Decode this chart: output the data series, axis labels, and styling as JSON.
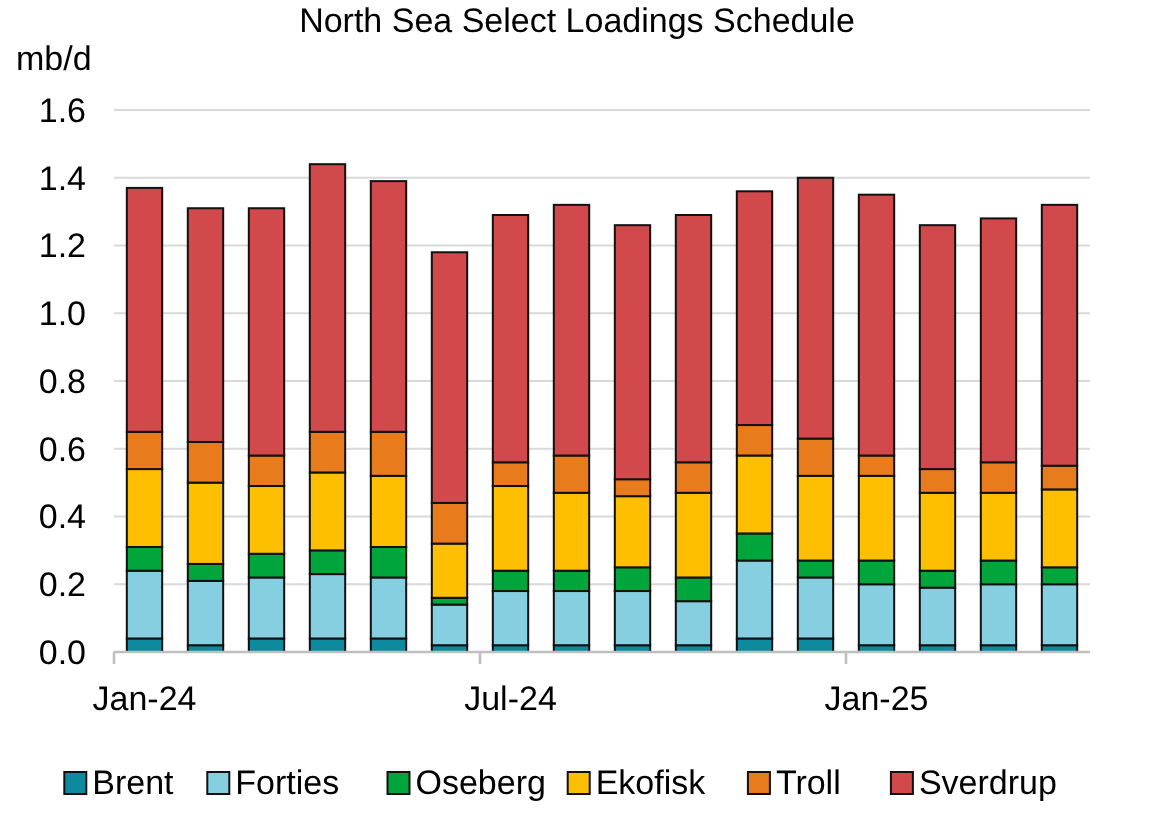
{
  "chart_data": {
    "type": "bar",
    "title": "North Sea Select Loadings Schedule",
    "ylabel": "mb/d",
    "stacked": true,
    "grid": "y",
    "legend": "bottom",
    "categories": [
      "Jan-24",
      null,
      null,
      null,
      null,
      null,
      "Jul-24",
      null,
      null,
      null,
      null,
      null,
      "Jan-25",
      null,
      null,
      null
    ],
    "ylim": [
      0,
      1.6
    ],
    "yticks": [
      {
        "value": 0,
        "label": "0.0"
      },
      {
        "value": 0.2,
        "label": "0.2"
      },
      {
        "value": 0.4,
        "label": "0.4"
      },
      {
        "value": 0.6,
        "label": "0.6"
      },
      {
        "value": 0.8,
        "label": "0.8"
      },
      {
        "value": 1,
        "label": "1.0"
      },
      {
        "value": 1.2,
        "label": "1.2"
      },
      {
        "value": 1.4,
        "label": "1.4"
      },
      {
        "value": 1.6,
        "label": "1.6"
      }
    ],
    "series": [
      {
        "name": "Brent",
        "color": "#0e8a9e",
        "values": [
          0.04,
          0.02,
          0.04,
          0.04,
          0.04,
          0.02,
          0.02,
          0.02,
          0.02,
          0.02,
          0.04,
          0.04,
          0.02,
          0.02,
          0.02,
          0.02
        ]
      },
      {
        "name": "Forties",
        "color": "#85cfe0",
        "values": [
          0.2,
          0.19,
          0.18,
          0.19,
          0.18,
          0.12,
          0.16,
          0.16,
          0.16,
          0.13,
          0.23,
          0.18,
          0.18,
          0.17,
          0.18,
          0.18
        ]
      },
      {
        "name": "Oseberg",
        "color": "#00a63c",
        "values": [
          0.07,
          0.05,
          0.07,
          0.07,
          0.09,
          0.02,
          0.06,
          0.06,
          0.07,
          0.07,
          0.08,
          0.05,
          0.07,
          0.05,
          0.07,
          0.05
        ]
      },
      {
        "name": "Ekofisk",
        "color": "#fdbf00",
        "values": [
          0.23,
          0.24,
          0.2,
          0.23,
          0.21,
          0.16,
          0.25,
          0.23,
          0.21,
          0.25,
          0.23,
          0.25,
          0.25,
          0.23,
          0.2,
          0.23
        ]
      },
      {
        "name": "Troll",
        "color": "#e87b1c",
        "values": [
          0.11,
          0.12,
          0.09,
          0.12,
          0.13,
          0.12,
          0.07,
          0.11,
          0.05,
          0.09,
          0.09,
          0.11,
          0.06,
          0.07,
          0.09,
          0.07
        ]
      },
      {
        "name": "Sverdrup",
        "color": "#d2494c",
        "values": [
          0.72,
          0.69,
          0.73,
          0.79,
          0.74,
          0.74,
          0.73,
          0.74,
          0.75,
          0.73,
          0.69,
          0.77,
          0.77,
          0.72,
          0.72,
          0.77
        ]
      }
    ]
  }
}
